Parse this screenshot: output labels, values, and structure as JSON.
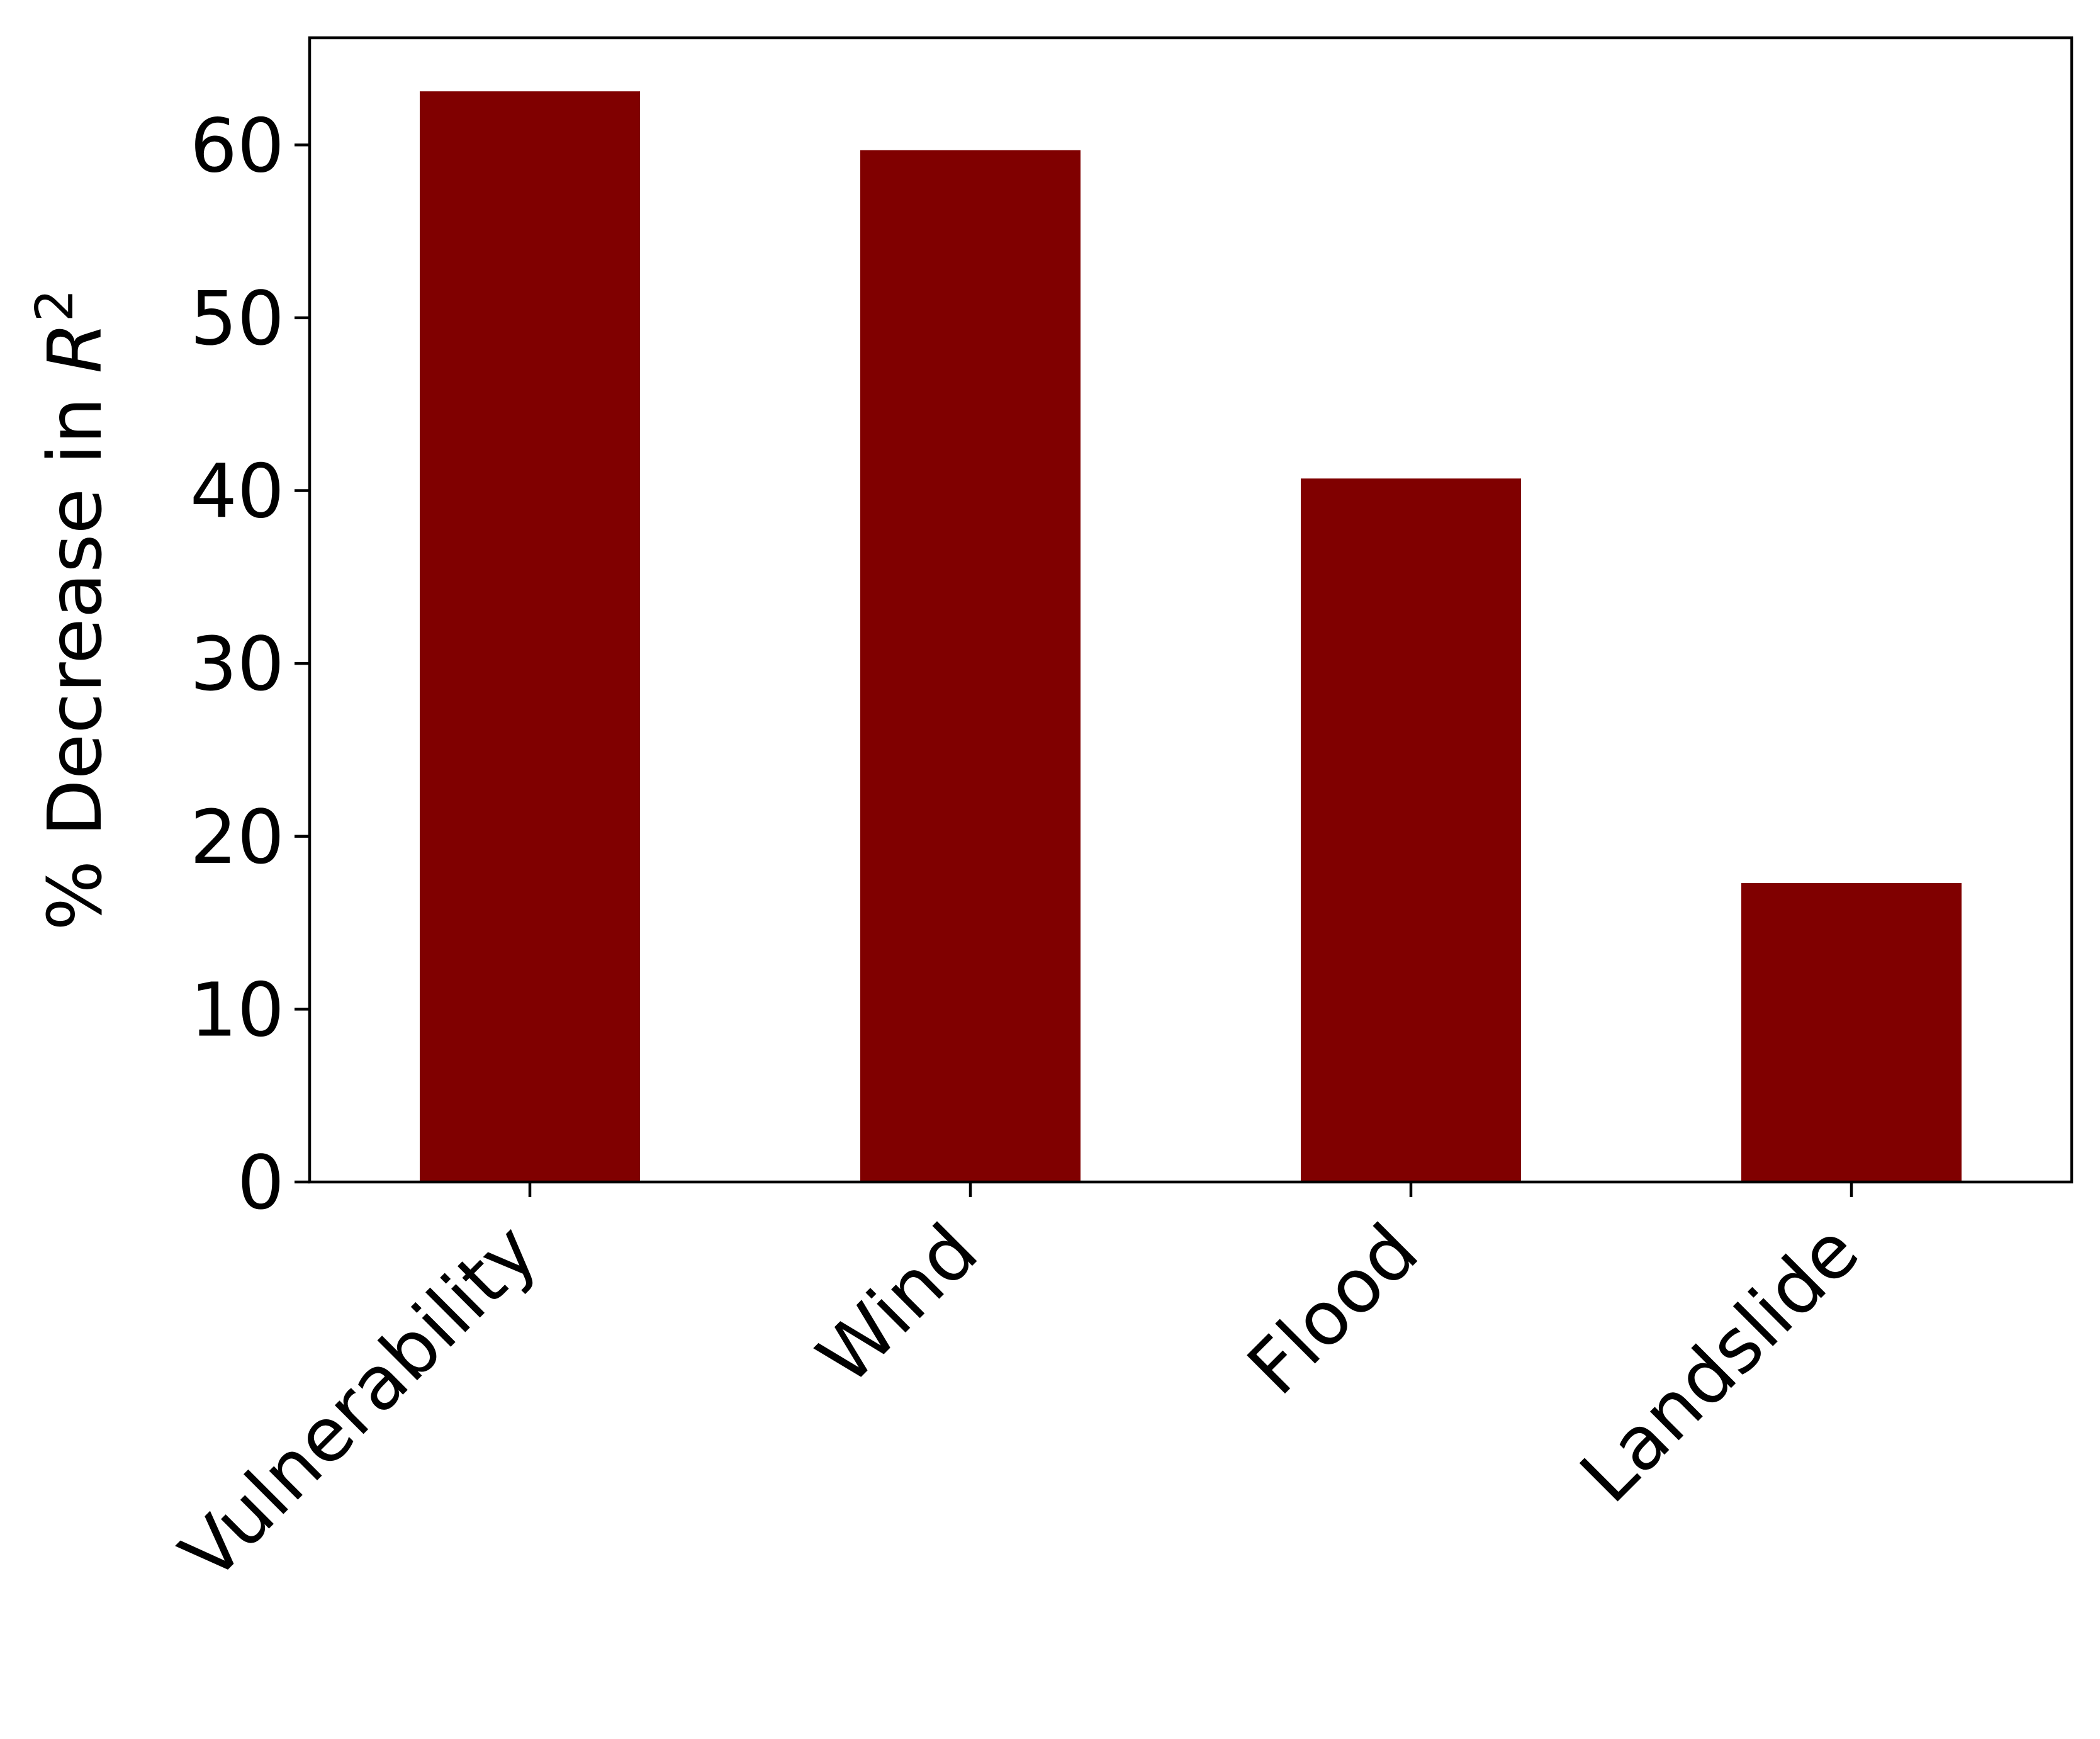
{
  "chart_data": {
    "type": "bar",
    "categories": [
      "Vulnerability",
      "Wind",
      "Flood",
      "Landslide"
    ],
    "values": [
      63.1,
      59.7,
      40.7,
      17.3
    ],
    "title": "",
    "xlabel": "",
    "ylabel": "% Decrease in R²",
    "ylabel_parts": {
      "text": "% Decrease in ",
      "var": "R",
      "sup": "2"
    },
    "ylim": [
      0,
      66.2
    ],
    "yticks": [
      0,
      10,
      20,
      30,
      40,
      50,
      60
    ],
    "grid": false,
    "legend": "none",
    "bar_color": "#800000"
  }
}
